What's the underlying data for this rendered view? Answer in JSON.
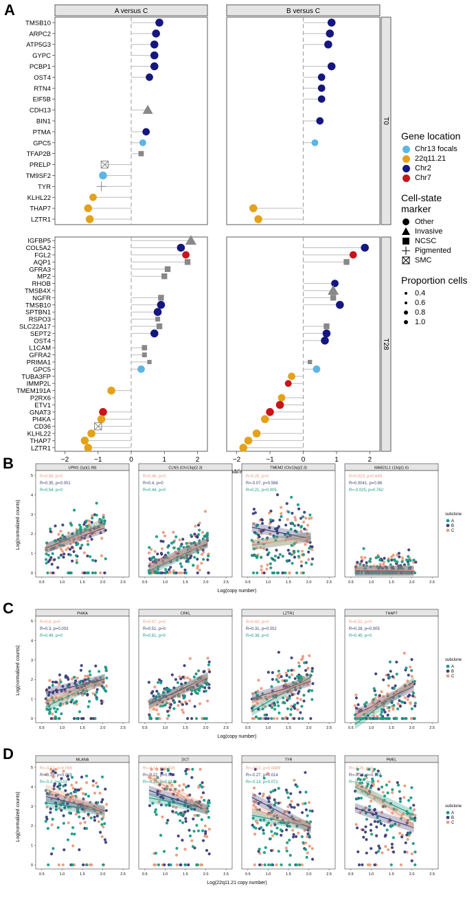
{
  "panel_labels": {
    "a": "A",
    "b": "B",
    "c": "C",
    "d": "D"
  },
  "panelA": {
    "facets": [
      "A versus C",
      "B versus C"
    ],
    "row_strips": [
      "T0",
      "T28"
    ],
    "xlabel": "Average fold change",
    "xticks": [
      -2,
      -1,
      0,
      1,
      2
    ],
    "legend": {
      "location_title": "Gene location",
      "location_items": [
        {
          "label": "Chr13 focals",
          "color": "#5bb6e6"
        },
        {
          "label": "22q11.21",
          "color": "#e4a11a"
        },
        {
          "label": "Chr2",
          "color": "#14177f"
        },
        {
          "label": "Chr7",
          "color": "#c8141a"
        }
      ],
      "marker_title_1": "Cell-state",
      "marker_title_2": "marker",
      "marker_items": [
        "Other",
        "Invasive",
        "NCSC",
        "Pigmented",
        "SMC"
      ],
      "size_title": "Proportion cells",
      "size_items": [
        "0.4",
        "0.6",
        "0.8",
        "1.0"
      ]
    },
    "chart_data": {
      "type": "lollipop",
      "T0": {
        "genes": [
          "TMSB10",
          "ARPC2",
          "ATP5G3",
          "GYPC",
          "PCBP1",
          "OST4",
          "RTN4",
          "EIF5B",
          "CDH13",
          "BIN1",
          "PTMA",
          "GPC5",
          "TFAP2B",
          "PRELP",
          "TM9SF2",
          "TYR",
          "KLHL22",
          "THAP7",
          "LZTR1"
        ],
        "location": [
          "Chr2",
          "Chr2",
          "Chr2",
          "Chr2",
          "Chr2",
          "Chr2",
          "Chr2",
          "Chr2",
          "Chr2",
          "Chr2",
          "Chr2",
          "Chr13 focals",
          "Chr2",
          "Chr2",
          "Chr13 focals",
          "Chr2",
          "22q11.21",
          "22q11.21",
          "22q11.21"
        ],
        "marker": [
          "Other",
          "Other",
          "Other",
          "Other",
          "Other",
          "Other",
          "Other",
          "Other",
          "Invasive",
          "Other",
          "Other",
          "Other",
          "NCSC",
          "SMC",
          "Other",
          "Pigmented",
          "Other",
          "Other",
          "Other"
        ],
        "a_vs_c": [
          0.85,
          0.75,
          0.7,
          0.7,
          0.7,
          0.55,
          null,
          null,
          0.5,
          null,
          0.45,
          0.35,
          0.3,
          -0.8,
          -0.85,
          -0.9,
          -1.15,
          -1.3,
          -1.25
        ],
        "b_vs_c": [
          0.85,
          0.8,
          0.75,
          null,
          0.85,
          0.55,
          0.55,
          0.55,
          null,
          0.5,
          null,
          0.35,
          null,
          null,
          null,
          null,
          null,
          -1.5,
          -1.35
        ],
        "size": [
          0.9,
          0.9,
          0.9,
          0.9,
          0.9,
          0.8,
          0.8,
          0.8,
          0.9,
          0.8,
          0.8,
          0.7,
          0.6,
          0.9,
          0.9,
          0.9,
          0.8,
          0.9,
          0.9
        ]
      },
      "T28": {
        "genes": [
          "IGFBP5",
          "COL5A2",
          "FGL2",
          "AQP1",
          "GFRA3",
          "MPZ",
          "RHOB",
          "TMSB4X",
          "NGFR",
          "TMSB10",
          "SPTBN1",
          "RSPO3",
          "SLC22A17",
          "SEPT2",
          "OST4",
          "L1CAM",
          "GFRA2",
          "PRIMA1",
          "GPC5",
          "TUBA3FP",
          "IMMP2L",
          "TMEM191A",
          "P2RX6",
          "ETV1",
          "GNAT3",
          "PI4KA",
          "CD36",
          "KLHL22",
          "THAP7",
          "LZTR1"
        ],
        "location": [
          "Chr2",
          "Chr2",
          "Chr7",
          "Chr7",
          "Chr2",
          "Chr2",
          "Chr2",
          "Chr2",
          "Chr2",
          "Chr2",
          "Chr2",
          "Chr2",
          "Chr2",
          "Chr2",
          "Chr2",
          "Chr2",
          "Chr2",
          "Chr2",
          "Chr13 focals",
          "22q11.21",
          "Chr7",
          "22q11.21",
          "22q11.21",
          "Chr7",
          "Chr7",
          "22q11.21",
          "Chr7",
          "22q11.21",
          "22q11.21",
          "22q11.21"
        ],
        "marker": [
          "Invasive",
          "Other",
          "Other",
          "NCSC",
          "NCSC",
          "NCSC",
          "Other",
          "Invasive",
          "NCSC",
          "Other",
          "Other",
          "NCSC",
          "NCSC",
          "Other",
          "Other",
          "NCSC",
          "NCSC",
          "NCSC",
          "Other",
          "Other",
          "Other",
          "Other",
          "Other",
          "Other",
          "Other",
          "Other",
          "SMC",
          "Other",
          "Other",
          "Other"
        ],
        "a_vs_c": [
          1.8,
          1.5,
          1.65,
          1.7,
          1.1,
          1.0,
          null,
          null,
          0.9,
          0.9,
          0.8,
          0.8,
          0.85,
          0.7,
          null,
          0.4,
          0.4,
          0.55,
          0.3,
          null,
          null,
          -0.6,
          null,
          null,
          -0.85,
          -0.9,
          -1.0,
          -1.2,
          -1.4,
          -1.3
        ],
        "b_vs_c": [
          null,
          1.85,
          1.5,
          1.3,
          null,
          null,
          0.95,
          0.9,
          0.9,
          1.1,
          null,
          null,
          0.7,
          0.7,
          0.65,
          null,
          null,
          0.2,
          0.4,
          -0.35,
          -0.45,
          null,
          -0.65,
          -0.7,
          -1.0,
          -1.15,
          null,
          -1.4,
          -1.65,
          -1.8
        ],
        "size": [
          1.0,
          0.9,
          0.8,
          0.7,
          0.7,
          0.7,
          0.8,
          1.0,
          0.7,
          0.9,
          0.9,
          0.5,
          0.7,
          0.9,
          0.9,
          0.6,
          0.5,
          0.4,
          0.8,
          0.8,
          0.7,
          0.9,
          0.8,
          0.9,
          0.9,
          0.9,
          0.9,
          0.9,
          0.9,
          0.9
        ]
      }
    }
  },
  "scatter_panels": [
    {
      "label": "B",
      "xlabel": "Log(copy number)",
      "ylabel": "Log(normalized counts)",
      "legend_title": "subclone",
      "legend_items": [
        "A",
        "B",
        "C"
      ],
      "facets": [
        {
          "title": "UPM1 (1p)(1.98)",
          "stats": [
            "R=0.58, p=0",
            "R=0.35, p=0.001",
            "R=0.54, p=0"
          ],
          "slopes": [
            0.9,
            0.7,
            0.8
          ],
          "intercepts": [
            1.8,
            1.7,
            1.7
          ],
          "spread": 0.5
        },
        {
          "title": "CLNS (Chr13q)(2.3)",
          "stats": [
            "R=0.46, p=0",
            "R=0.4, p=0",
            "R=0.44, p=0"
          ],
          "slopes": [
            1.0,
            0.9,
            0.9
          ],
          "intercepts": [
            0.7,
            0.8,
            0.8
          ],
          "spread": 0.7
        },
        {
          "title": "TMEM2 (Chr13q)(2.3)",
          "stats": [
            "R=0.25, p=0",
            "R=-0.07, p=0.588",
            "R=0.21, p=0.005"
          ],
          "slopes": [
            0.3,
            -0.4,
            0.25
          ],
          "intercepts": [
            1.6,
            2.1,
            1.6
          ],
          "spread": 0.9
        },
        {
          "title": "MAB21L1 (13q)(1.6)",
          "stats": [
            "R=0.023, p=0.649",
            "R=0.0041, p=0.98",
            "R=-0.025, p=0.762"
          ],
          "slopes": [
            0.02,
            0.0,
            -0.02
          ],
          "intercepts": [
            0.1,
            0.1,
            0.15
          ],
          "spread": 0.4
        }
      ],
      "xticks": [
        "0.5",
        "1.0",
        "1.5",
        "2.0",
        "2.5"
      ],
      "yticks": [
        "0",
        "1",
        "2",
        "3",
        "4",
        "5"
      ]
    },
    {
      "label": "C",
      "xlabel": "Log(copy number)",
      "ylabel": "Log(normalized counts)",
      "legend_title": "subclone",
      "legend_items": [
        "A",
        "B",
        "C"
      ],
      "facets": [
        {
          "title": "PI4KA",
          "stats": [
            "R=0.6, p=0",
            "R=0.3, p=0.003",
            "R=0.49, p=0"
          ],
          "slopes": [
            1.0,
            0.5,
            0.8
          ],
          "intercepts": [
            1.2,
            1.6,
            1.3
          ],
          "spread": 0.5
        },
        {
          "title": "CRKL",
          "stats": [
            "R=0.57, p=0",
            "R=0.51, p=0",
            "R=0.61, p=0"
          ],
          "slopes": [
            1.0,
            0.9,
            1.1
          ],
          "intercepts": [
            1.3,
            1.3,
            1.2
          ],
          "spread": 0.5
        },
        {
          "title": "LZTR1",
          "stats": [
            "R=0.63, p=0",
            "R=0.31, p=0.002",
            "R=0.38, p=0"
          ],
          "slopes": [
            1.2,
            0.6,
            0.8
          ],
          "intercepts": [
            1.1,
            1.4,
            1.3
          ],
          "spread": 0.7
        },
        {
          "title": "THAP7",
          "stats": [
            "R=0.52, p=0",
            "R=0.28, p=0.005",
            "R=0.45, p=0"
          ],
          "slopes": [
            1.5,
            1.0,
            1.2
          ],
          "intercepts": [
            0.6,
            0.8,
            0.8
          ],
          "spread": 0.8
        }
      ],
      "xticks": [
        "0.5",
        "1.0",
        "1.5",
        "2.0",
        "2.5"
      ],
      "yticks": [
        "0",
        "1",
        "2",
        "3",
        "4",
        "5"
      ]
    },
    {
      "label": "D",
      "xlabel": "Log(22q11.21 copy number)",
      "ylabel": "Log(normalized counts)",
      "legend_title": "subclone",
      "legend_items": [
        "A",
        "B",
        "C"
      ],
      "facets": [
        {
          "title": "MLANA",
          "stats": [
            "R=-0.12, p=0.056",
            "R=-0.18, p=0.083",
            "R=-0.2, p=0.01"
          ],
          "slopes": [
            -0.3,
            -0.5,
            -0.8
          ],
          "intercepts": [
            3.0,
            3.2,
            3.4
          ],
          "spread": 0.8
        },
        {
          "title": "DCT",
          "stats": [
            "R=-0.14, p=0.026",
            "R=-0.22, p=0.004",
            "R=-0.26, p=0.018"
          ],
          "slopes": [
            -0.4,
            -0.7,
            -1.2
          ],
          "intercepts": [
            3.2,
            3.4,
            3.8
          ],
          "spread": 0.9
        },
        {
          "title": "TYR",
          "stats": [
            "R=-0.12, p=0.0499",
            "R=-0.27, p=0.014",
            "R=-0.13, p=0.071"
          ],
          "slopes": [
            -0.4,
            -1.1,
            -0.6
          ],
          "intercepts": [
            2.3,
            2.8,
            2.5
          ],
          "spread": 0.9
        },
        {
          "title": "PMEL",
          "stats": [
            "R=-0.28, p=0",
            "R=-0.14, p=0.157",
            "R=-0.27, p=0"
          ],
          "slopes": [
            -1.0,
            -0.7,
            -1.5
          ],
          "intercepts": [
            3.4,
            2.5,
            3.3
          ],
          "spread": 1.0
        }
      ],
      "xticks": [
        "0.5",
        "1.0",
        "1.5",
        "2.0",
        "2.5"
      ],
      "yticks": [
        "0",
        "1",
        "2",
        "3",
        "4",
        "5"
      ]
    }
  ],
  "colors": {
    "subcloneA": "#1a9b83",
    "subcloneB": "#3a3f7a",
    "subcloneC": "#eb9a7d",
    "strip_bg": "#e5e5e5",
    "grey_marker": "#888888"
  }
}
